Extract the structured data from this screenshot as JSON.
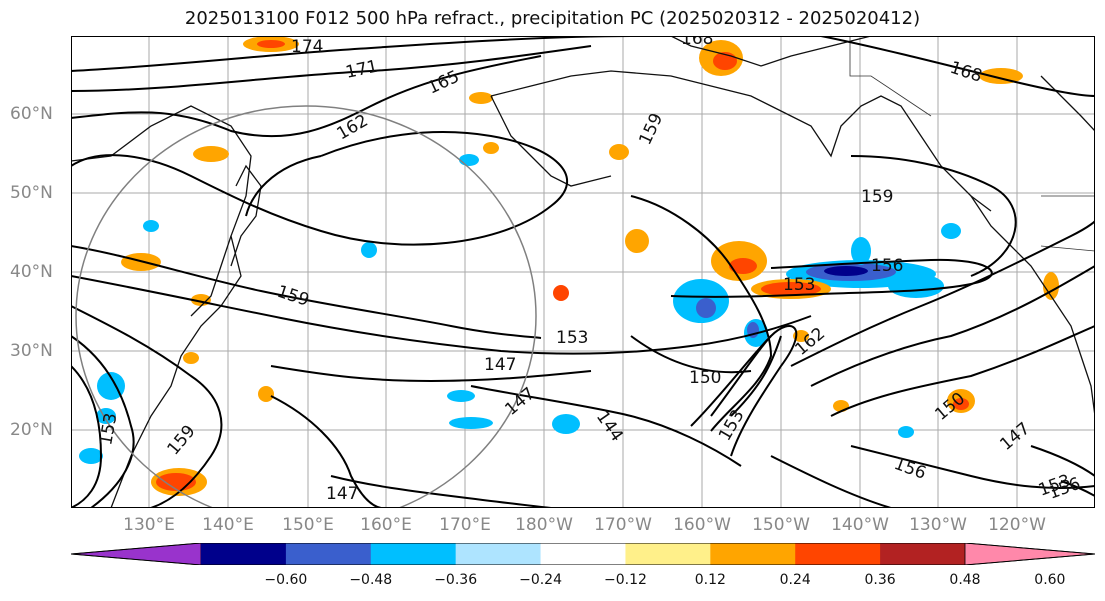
{
  "title": "2025013100 F012 500 hPa refract., precipitation PC (2025020312 - 2025020412)",
  "lat_labels": [
    "60°N",
    "50°N",
    "40°N",
    "30°N",
    "20°N"
  ],
  "lon_labels": [
    "130°E",
    "140°E",
    "150°E",
    "160°E",
    "170°E",
    "180°W",
    "170°W",
    "160°W",
    "150°W",
    "140°W",
    "130°W",
    "120°W"
  ],
  "contour_labels": [
    "174",
    "171",
    "165",
    "168",
    "162",
    "159",
    "168",
    "159",
    "159",
    "156",
    "153",
    "153",
    "147",
    "150",
    "162",
    "147",
    "144",
    "147",
    "150",
    "147",
    "153",
    "156",
    "156",
    "159",
    "153",
    "153"
  ],
  "colorbar": {
    "ticks": [
      "−0.60",
      "−0.48",
      "−0.36",
      "−0.24",
      "−0.12",
      "0.12",
      "0.24",
      "0.36",
      "0.48",
      "0.60"
    ],
    "colors": [
      "#9933cc",
      "#00008b",
      "#3a5fcd",
      "#00bfff",
      "#aee4ff",
      "#ffffff",
      "#fff08a",
      "#ffa500",
      "#ff4500",
      "#b22222",
      "#ff88aa"
    ]
  },
  "colors": {
    "land": "#111111",
    "grid": "#aaaaaa",
    "contour": "#000000",
    "circle": "#808080"
  }
}
